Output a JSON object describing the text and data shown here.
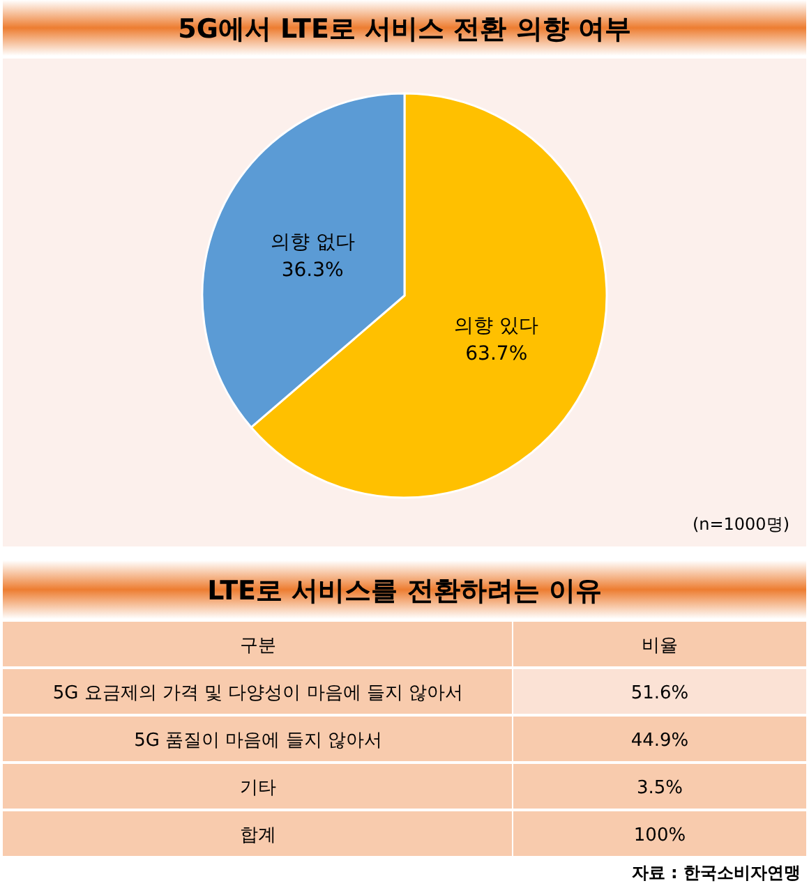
{
  "chart_data": [
    {
      "type": "pie",
      "title": "5G에서 LTE로 서비스 전환 의향 여부",
      "categories": [
        "의향 있다",
        "의향 없다"
      ],
      "values": [
        63.7,
        36.3
      ],
      "colors": [
        "#ffc000",
        "#5b9bd5"
      ],
      "value_labels": [
        "63.7%",
        "36.3%"
      ],
      "annotations": [
        "(n=1000명)"
      ]
    },
    {
      "type": "other",
      "title": "LTE로 서비스를 전환하려는 이유",
      "xlabel": "구분",
      "ylabel": "비율",
      "categories": [
        "5G 요금제의 가격 및 다양성이 마음에 들지 않아서",
        "5G 품질이 마음에 들지 않아서",
        "기타",
        "합계"
      ],
      "value_labels": [
        "51.6%",
        "44.9%",
        "3.5%",
        "100%"
      ],
      "annotations": [
        "자료 : 한국소비자연맹"
      ]
    }
  ]
}
